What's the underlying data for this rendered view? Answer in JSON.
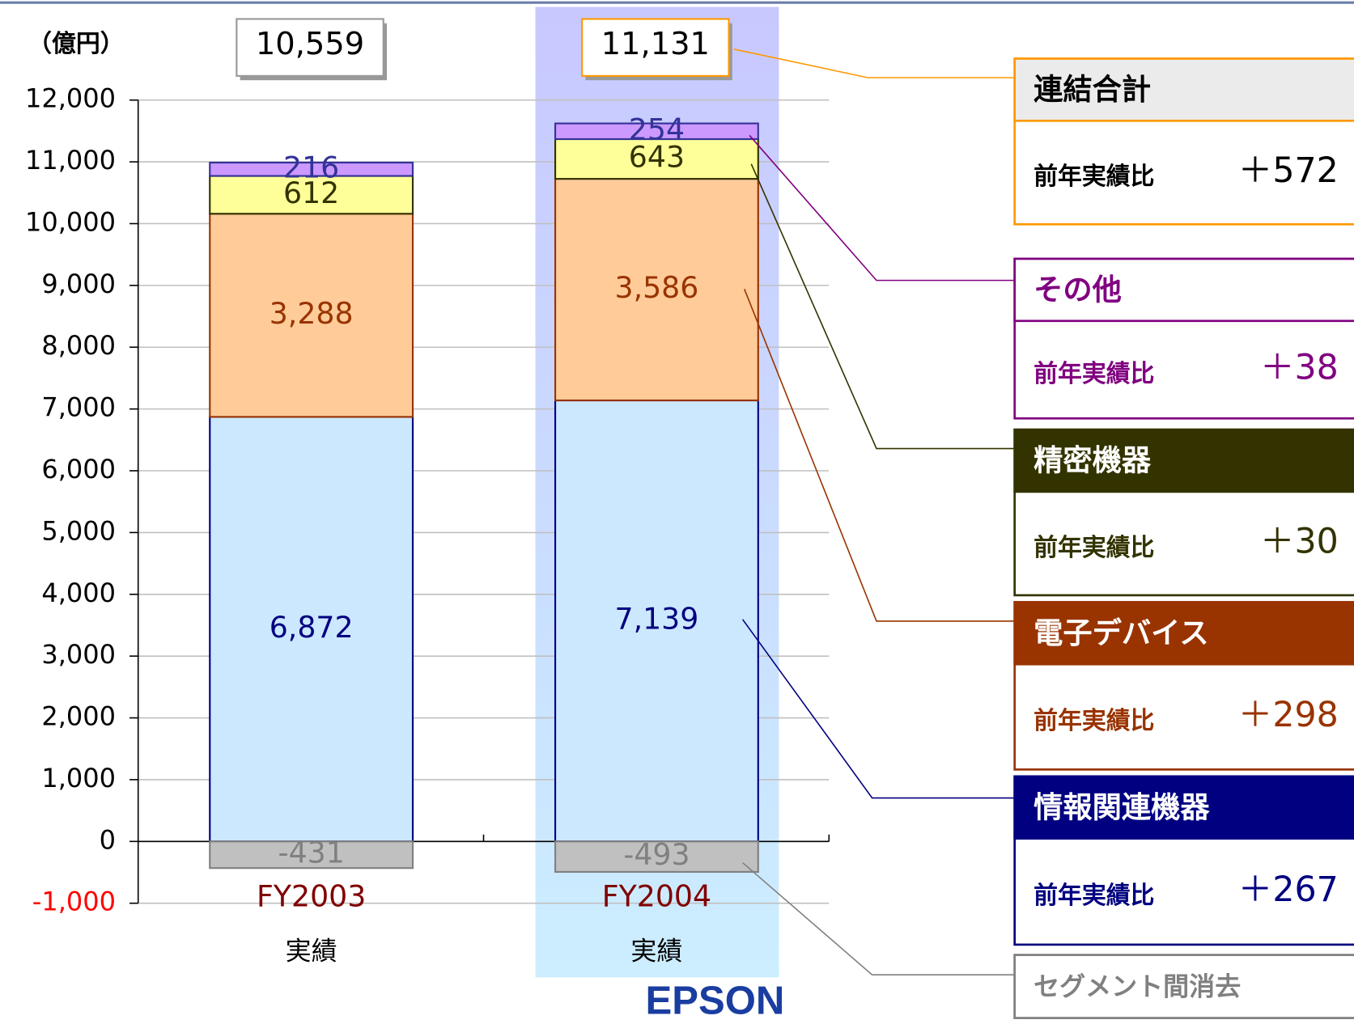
{
  "chart_data": {
    "type": "stacked_bar",
    "unit_label": "（億円）",
    "categories": [
      "FY2003",
      "FY2004"
    ],
    "category_sublabels": [
      "実績",
      "実績"
    ],
    "series": [
      {
        "name": "情報関連機器",
        "color": "#cce8ff",
        "stroke": "#000080",
        "panel_color": "#000080",
        "values": [
          6872,
          7139
        ],
        "value_labels": [
          "6,872",
          "7,139"
        ],
        "diff_label": "前年実績比",
        "diff": "＋267"
      },
      {
        "name": "電子デバイス",
        "color": "#ffcc99",
        "stroke": "#993300",
        "panel_color": "#993300",
        "values": [
          3288,
          3586
        ],
        "value_labels": [
          "3,288",
          "3,586"
        ],
        "diff_label": "前年実績比",
        "diff": "＋298"
      },
      {
        "name": "精密機器",
        "color": "#ffff99",
        "stroke": "#333300",
        "panel_color": "#333300",
        "values": [
          612,
          643
        ],
        "value_labels": [
          "612",
          "643"
        ],
        "diff_label": "前年実績比",
        "diff": "＋30"
      },
      {
        "name": "その他",
        "color": "#cc99ff",
        "stroke": "#333399",
        "panel_color": "#800080",
        "values": [
          216,
          254
        ],
        "value_labels": [
          "216",
          "254"
        ],
        "diff_label": "前年実績比",
        "diff": "＋38"
      },
      {
        "name": "セグメント間消去",
        "color": "#c0c0c0",
        "stroke": "#808080",
        "panel_color": "#808080",
        "values": [
          -431,
          -493
        ],
        "value_labels": [
          "-431",
          "-493"
        ]
      }
    ],
    "totals": [
      10559,
      11131
    ],
    "total_labels": [
      "10,559",
      "11,131"
    ],
    "total_name": "連結合計",
    "total_diff_label": "前年実績比",
    "total_diff": "＋572",
    "ylim": [
      -1000,
      12000
    ],
    "yticks": [
      {
        "value": -1000,
        "label": "-1,000"
      },
      0,
      {
        "value": 1000,
        "label": "1,000"
      },
      {
        "value": 2000,
        "label": "2,000"
      },
      {
        "value": 3000,
        "label": "3,000"
      },
      {
        "value": 4000,
        "label": "4,000"
      },
      {
        "value": 5000,
        "label": "5,000"
      },
      {
        "value": 6000,
        "label": "6,000"
      },
      {
        "value": 7000,
        "label": "7,000"
      },
      {
        "value": 8000,
        "label": "8,000"
      },
      {
        "value": 9000,
        "label": "9,000"
      },
      {
        "value": 10000,
        "label": "10,000"
      },
      {
        "value": 11000,
        "label": "11,000"
      },
      {
        "value": 12000,
        "label": "12,000"
      }
    ],
    "grid": true,
    "highlight_category": 1
  },
  "footer": {
    "logo": "EPSON"
  }
}
